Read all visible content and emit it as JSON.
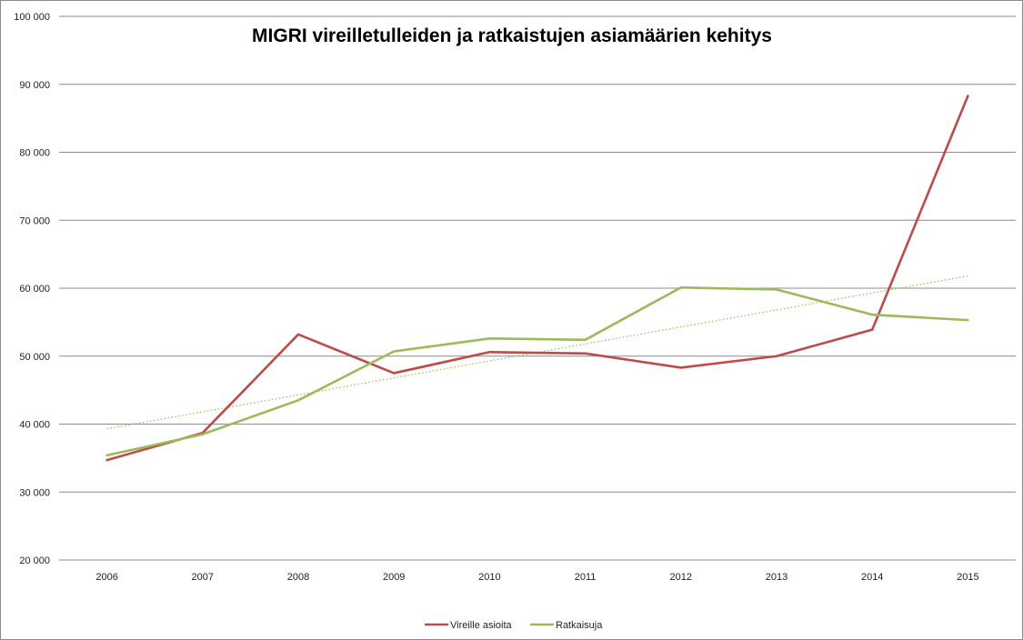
{
  "chart_data": {
    "type": "line",
    "title": "MIGRI vireilletulleiden ja ratkaistujen asiamäärien kehitys",
    "xlabel": "",
    "ylabel": "",
    "categories": [
      "2006",
      "2007",
      "2008",
      "2009",
      "2010",
      "2011",
      "2012",
      "2013",
      "2014",
      "2015"
    ],
    "ylim": [
      20000,
      100000
    ],
    "yticks": [
      20000,
      30000,
      40000,
      50000,
      60000,
      70000,
      80000,
      90000,
      100000
    ],
    "ytick_labels": [
      "20 000",
      "30 000",
      "40 000",
      "50 000",
      "60 000",
      "70 000",
      "80 000",
      "90 000",
      "100 000"
    ],
    "grid": true,
    "legend_position": "bottom",
    "series": [
      {
        "name": "Vireille asioita",
        "color": "#be4b48",
        "values": [
          34700,
          38700,
          53200,
          47500,
          50600,
          50400,
          48300,
          50000,
          53900,
          88300
        ]
      },
      {
        "name": "Ratkaisuja",
        "color": "#9bbb59",
        "values": [
          35400,
          38500,
          43500,
          50700,
          52600,
          52400,
          60100,
          59800,
          56100,
          55300
        ]
      }
    ],
    "trendline": {
      "color": "#9bbb59",
      "style": "dotted",
      "values": [
        39300,
        61800
      ]
    }
  }
}
